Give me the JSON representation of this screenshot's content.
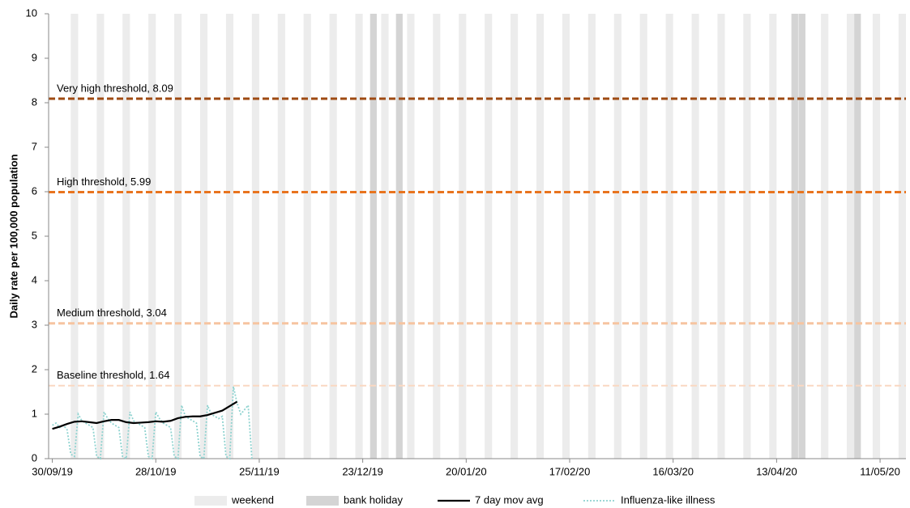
{
  "chart_data": {
    "type": "line",
    "y_label": "Daily rate per 100,000 population",
    "xlim": [
      -1,
      231
    ],
    "ylim": [
      0,
      10
    ],
    "yticks": [
      0,
      1,
      2,
      3,
      4,
      5,
      6,
      7,
      8,
      9,
      10
    ],
    "xticks": [
      {
        "value": 0,
        "label": "30/09/19"
      },
      {
        "value": 28,
        "label": "28/10/19"
      },
      {
        "value": 56,
        "label": "25/11/19"
      },
      {
        "value": 84,
        "label": "23/12/19"
      },
      {
        "value": 112,
        "label": "20/01/20"
      },
      {
        "value": 140,
        "label": "17/02/20"
      },
      {
        "value": 168,
        "label": "16/03/20"
      },
      {
        "value": 196,
        "label": "13/04/20"
      },
      {
        "value": 224,
        "label": "11/05/20"
      }
    ],
    "bands": [
      {
        "name": "weekend",
        "color": "#ececec",
        "x": [
          5,
          12,
          19,
          26,
          33,
          40,
          47,
          54,
          61,
          68,
          75,
          82,
          89,
          96,
          103,
          110,
          117,
          124,
          131,
          138,
          145,
          152,
          159,
          166,
          173,
          180,
          187,
          194,
          201,
          208,
          215,
          222,
          229
        ]
      },
      {
        "name": "bank holiday",
        "color": "#d4d4d4",
        "x": [
          86,
          93,
          200,
          202,
          217
        ]
      }
    ],
    "thresholds": [
      {
        "label": "Very high threshold, 8.09",
        "value": 8.09,
        "color": "#9e4a12"
      },
      {
        "label": "High threshold, 5.99",
        "value": 5.99,
        "color": "#e8741e"
      },
      {
        "label": "Medium threshold, 3.04",
        "value": 3.04,
        "color": "#f6c4a0"
      },
      {
        "label": "Baseline threshold, 1.64",
        "value": 1.64,
        "color": "#fad8c2"
      }
    ],
    "series": [
      {
        "name": "7 day mov avg",
        "color": "#000000",
        "x": [
          0,
          2,
          4,
          6,
          8,
          10,
          12,
          14,
          16,
          18,
          20,
          22,
          24,
          26,
          28,
          30,
          32,
          34,
          36,
          38,
          40,
          42,
          44,
          46,
          48,
          50
        ],
        "values": [
          0.67,
          0.72,
          0.78,
          0.83,
          0.84,
          0.82,
          0.8,
          0.84,
          0.87,
          0.87,
          0.82,
          0.8,
          0.81,
          0.82,
          0.84,
          0.83,
          0.85,
          0.91,
          0.94,
          0.95,
          0.95,
          0.98,
          1.03,
          1.08,
          1.18,
          1.28
        ]
      },
      {
        "name": "Influenza-like illness",
        "color": "#8fd3d0",
        "x": [
          0,
          1,
          2,
          3,
          4,
          5,
          6,
          7,
          8,
          9,
          10,
          11,
          12,
          13,
          14,
          15,
          16,
          17,
          18,
          19,
          20,
          21,
          22,
          23,
          24,
          25,
          26,
          27,
          28,
          29,
          30,
          31,
          32,
          33,
          34,
          35,
          36,
          37,
          38,
          39,
          40,
          41,
          42,
          43,
          44,
          45,
          46,
          47,
          48,
          49,
          50,
          51,
          52,
          53,
          54
        ],
        "values": [
          0.75,
          0.8,
          0.7,
          0.75,
          0.65,
          0.1,
          0.05,
          1.0,
          0.85,
          0.8,
          0.75,
          0.7,
          0.05,
          0.0,
          1.05,
          0.9,
          0.8,
          0.75,
          0.7,
          0.05,
          0.0,
          1.05,
          0.85,
          0.8,
          0.75,
          0.7,
          0.05,
          0.0,
          1.05,
          0.9,
          0.8,
          0.75,
          0.7,
          0.05,
          0.0,
          1.2,
          0.95,
          0.9,
          0.85,
          0.8,
          0.05,
          0.0,
          1.2,
          1.0,
          0.95,
          0.9,
          0.95,
          0.05,
          0.0,
          1.62,
          1.25,
          1.0,
          1.1,
          1.2,
          0.0
        ]
      }
    ]
  }
}
